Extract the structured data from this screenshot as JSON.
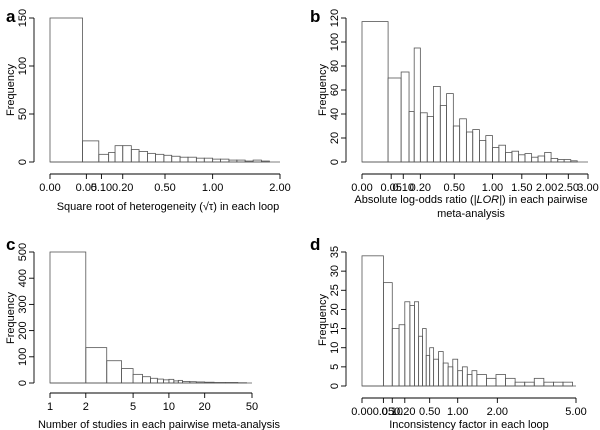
{
  "chart_data": [
    {
      "panel": "a",
      "type": "bar",
      "ylabel": "Frequency",
      "xlabel": "Square root of heterogeneity (√τ) in each loop",
      "xlabel_parts": [
        "Square root of heterogeneity (",
        "√τ",
        ") in each loop"
      ],
      "x_scale": "sqrt",
      "xlim": [
        0,
        2.0
      ],
      "ylim": [
        0,
        150
      ],
      "xtick_labels": [
        "0.00",
        "0.05",
        "0.10",
        "0.20",
        "0.50",
        "1.00",
        "2.00"
      ],
      "xticks": [
        0,
        0.05,
        0.1,
        0.2,
        0.5,
        1.0,
        2.0
      ],
      "yticks": [
        0,
        50,
        100,
        150
      ],
      "bins": [
        {
          "x0": 0.0,
          "x1": 0.04,
          "count": 150
        },
        {
          "x0": 0.04,
          "x1": 0.09,
          "count": 22
        },
        {
          "x0": 0.09,
          "x1": 0.13,
          "count": 8
        },
        {
          "x0": 0.13,
          "x1": 0.16,
          "count": 10
        },
        {
          "x0": 0.16,
          "x1": 0.2,
          "count": 17
        },
        {
          "x0": 0.2,
          "x1": 0.25,
          "count": 17
        },
        {
          "x0": 0.25,
          "x1": 0.3,
          "count": 13
        },
        {
          "x0": 0.3,
          "x1": 0.36,
          "count": 11
        },
        {
          "x0": 0.36,
          "x1": 0.42,
          "count": 9
        },
        {
          "x0": 0.42,
          "x1": 0.49,
          "count": 8
        },
        {
          "x0": 0.49,
          "x1": 0.56,
          "count": 7
        },
        {
          "x0": 0.56,
          "x1": 0.64,
          "count": 6
        },
        {
          "x0": 0.64,
          "x1": 0.72,
          "count": 5
        },
        {
          "x0": 0.72,
          "x1": 0.81,
          "count": 5
        },
        {
          "x0": 0.81,
          "x1": 0.9,
          "count": 4
        },
        {
          "x0": 0.9,
          "x1": 1.0,
          "count": 4
        },
        {
          "x0": 1.0,
          "x1": 1.1,
          "count": 3
        },
        {
          "x0": 1.1,
          "x1": 1.21,
          "count": 3
        },
        {
          "x0": 1.21,
          "x1": 1.32,
          "count": 2
        },
        {
          "x0": 1.32,
          "x1": 1.44,
          "count": 2
        },
        {
          "x0": 1.44,
          "x1": 1.56,
          "count": 1
        },
        {
          "x0": 1.56,
          "x1": 1.69,
          "count": 2
        },
        {
          "x0": 1.69,
          "x1": 1.82,
          "count": 1
        }
      ]
    },
    {
      "panel": "b",
      "type": "bar",
      "ylabel": "Frequency",
      "xlabel": "Absolute log-odds ratio (|LOR|) in each pairwise meta-analysis",
      "xlabel_parts": [
        "Absolute log-odds ratio (",
        "|LOR|",
        ") in each pairwise",
        "meta-analysis"
      ],
      "x_scale": "sqrt",
      "xlim": [
        0,
        3.0
      ],
      "ylim": [
        0,
        120
      ],
      "xtick_labels": [
        "0.00",
        "0.05",
        "0.10",
        "0.20",
        "0.50",
        "1.00",
        "1.50",
        "2.00",
        "2.50",
        "3.00"
      ],
      "xticks": [
        0,
        0.05,
        0.1,
        0.2,
        0.5,
        1.0,
        1.5,
        2.0,
        2.5,
        3.0
      ],
      "yticks": [
        0,
        20,
        40,
        60,
        80,
        100,
        120
      ],
      "bins": [
        {
          "x0": 0.0,
          "x1": 0.04,
          "count": 117
        },
        {
          "x0": 0.04,
          "x1": 0.09,
          "count": 70
        },
        {
          "x0": 0.09,
          "x1": 0.13,
          "count": 75
        },
        {
          "x0": 0.13,
          "x1": 0.16,
          "count": 42
        },
        {
          "x0": 0.16,
          "x1": 0.2,
          "count": 95
        },
        {
          "x0": 0.2,
          "x1": 0.25,
          "count": 41
        },
        {
          "x0": 0.25,
          "x1": 0.3,
          "count": 38
        },
        {
          "x0": 0.3,
          "x1": 0.36,
          "count": 63
        },
        {
          "x0": 0.36,
          "x1": 0.42,
          "count": 47
        },
        {
          "x0": 0.42,
          "x1": 0.49,
          "count": 57
        },
        {
          "x0": 0.49,
          "x1": 0.56,
          "count": 30
        },
        {
          "x0": 0.56,
          "x1": 0.64,
          "count": 36
        },
        {
          "x0": 0.64,
          "x1": 0.72,
          "count": 25
        },
        {
          "x0": 0.72,
          "x1": 0.81,
          "count": 27
        },
        {
          "x0": 0.81,
          "x1": 0.9,
          "count": 18
        },
        {
          "x0": 0.9,
          "x1": 1.0,
          "count": 22
        },
        {
          "x0": 1.0,
          "x1": 1.1,
          "count": 12
        },
        {
          "x0": 1.1,
          "x1": 1.21,
          "count": 14
        },
        {
          "x0": 1.21,
          "x1": 1.32,
          "count": 8
        },
        {
          "x0": 1.32,
          "x1": 1.44,
          "count": 9
        },
        {
          "x0": 1.44,
          "x1": 1.56,
          "count": 6
        },
        {
          "x0": 1.56,
          "x1": 1.69,
          "count": 7
        },
        {
          "x0": 1.69,
          "x1": 1.82,
          "count": 4
        },
        {
          "x0": 1.82,
          "x1": 1.96,
          "count": 5
        },
        {
          "x0": 1.96,
          "x1": 2.1,
          "count": 8
        },
        {
          "x0": 2.1,
          "x1": 2.25,
          "count": 3
        },
        {
          "x0": 2.25,
          "x1": 2.4,
          "count": 2
        },
        {
          "x0": 2.4,
          "x1": 2.56,
          "count": 2
        },
        {
          "x0": 2.56,
          "x1": 2.72,
          "count": 1
        }
      ]
    },
    {
      "panel": "c",
      "type": "bar",
      "ylabel": "Frequency",
      "xlabel": "Number of studies in each pairwise meta-analysis",
      "x_scale": "log",
      "xlim": [
        1,
        50
      ],
      "ylim": [
        0,
        500
      ],
      "xtick_labels": [
        "1",
        "2",
        "5",
        "10",
        "20",
        "50"
      ],
      "xticks": [
        1,
        2,
        5,
        10,
        20,
        50
      ],
      "yticks": [
        0,
        100,
        200,
        300,
        400,
        500
      ],
      "bins": [
        {
          "x0": 1,
          "x1": 2,
          "count": 500
        },
        {
          "x0": 2,
          "x1": 3,
          "count": 135
        },
        {
          "x0": 3,
          "x1": 4,
          "count": 85
        },
        {
          "x0": 4,
          "x1": 5,
          "count": 55
        },
        {
          "x0": 5,
          "x1": 6,
          "count": 33
        },
        {
          "x0": 6,
          "x1": 7,
          "count": 24
        },
        {
          "x0": 7,
          "x1": 8,
          "count": 18
        },
        {
          "x0": 8,
          "x1": 9,
          "count": 15
        },
        {
          "x0": 9,
          "x1": 10,
          "count": 12
        },
        {
          "x0": 10,
          "x1": 11,
          "count": 14
        },
        {
          "x0": 11,
          "x1": 12,
          "count": 8
        },
        {
          "x0": 12,
          "x1": 13,
          "count": 10
        },
        {
          "x0": 13,
          "x1": 15,
          "count": 6
        },
        {
          "x0": 15,
          "x1": 17,
          "count": 5
        },
        {
          "x0": 17,
          "x1": 20,
          "count": 4
        },
        {
          "x0": 20,
          "x1": 24,
          "count": 3
        },
        {
          "x0": 24,
          "x1": 30,
          "count": 2
        },
        {
          "x0": 30,
          "x1": 38,
          "count": 2
        },
        {
          "x0": 38,
          "x1": 45,
          "count": 1
        }
      ]
    },
    {
      "panel": "d",
      "type": "bar",
      "ylabel": "Frequency",
      "xlabel": "Inconsistency factor in each loop",
      "x_scale": "sqrt",
      "xlim": [
        0,
        5.0
      ],
      "ylim": [
        0,
        35
      ],
      "xtick_labels": [
        "0.00",
        "0.05",
        "0.10",
        "0.20",
        "0.50",
        "1.00",
        "2.00",
        "5.00"
      ],
      "xticks": [
        0,
        0.05,
        0.1,
        0.2,
        0.5,
        1.0,
        2.0,
        5.0
      ],
      "yticks": [
        0,
        5,
        10,
        15,
        20,
        25,
        30,
        35
      ],
      "bins": [
        {
          "x0": 0.0,
          "x1": 0.05,
          "count": 34
        },
        {
          "x0": 0.05,
          "x1": 0.1,
          "count": 27
        },
        {
          "x0": 0.1,
          "x1": 0.15,
          "count": 15
        },
        {
          "x0": 0.15,
          "x1": 0.2,
          "count": 16
        },
        {
          "x0": 0.2,
          "x1": 0.25,
          "count": 22
        },
        {
          "x0": 0.25,
          "x1": 0.3,
          "count": 21
        },
        {
          "x0": 0.3,
          "x1": 0.35,
          "count": 22
        },
        {
          "x0": 0.35,
          "x1": 0.4,
          "count": 13
        },
        {
          "x0": 0.4,
          "x1": 0.45,
          "count": 15
        },
        {
          "x0": 0.45,
          "x1": 0.5,
          "count": 8
        },
        {
          "x0": 0.5,
          "x1": 0.56,
          "count": 10
        },
        {
          "x0": 0.56,
          "x1": 0.64,
          "count": 7
        },
        {
          "x0": 0.64,
          "x1": 0.72,
          "count": 9
        },
        {
          "x0": 0.72,
          "x1": 0.81,
          "count": 6
        },
        {
          "x0": 0.81,
          "x1": 0.9,
          "count": 5
        },
        {
          "x0": 0.9,
          "x1": 1.0,
          "count": 7
        },
        {
          "x0": 1.0,
          "x1": 1.1,
          "count": 4
        },
        {
          "x0": 1.1,
          "x1": 1.21,
          "count": 5
        },
        {
          "x0": 1.21,
          "x1": 1.32,
          "count": 3
        },
        {
          "x0": 1.32,
          "x1": 1.44,
          "count": 4
        },
        {
          "x0": 1.44,
          "x1": 1.69,
          "count": 3
        },
        {
          "x0": 1.69,
          "x1": 1.96,
          "count": 2
        },
        {
          "x0": 1.96,
          "x1": 2.25,
          "count": 3
        },
        {
          "x0": 2.25,
          "x1": 2.56,
          "count": 2
        },
        {
          "x0": 2.56,
          "x1": 2.89,
          "count": 1
        },
        {
          "x0": 2.89,
          "x1": 3.24,
          "count": 1
        },
        {
          "x0": 3.24,
          "x1": 3.61,
          "count": 2
        },
        {
          "x0": 3.61,
          "x1": 4.0,
          "count": 1
        },
        {
          "x0": 4.0,
          "x1": 4.41,
          "count": 1
        },
        {
          "x0": 4.41,
          "x1": 4.84,
          "count": 1
        }
      ]
    }
  ]
}
